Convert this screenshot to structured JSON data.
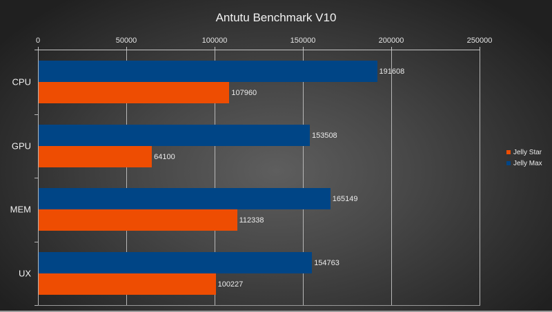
{
  "chart_data": {
    "type": "bar",
    "orientation": "horizontal",
    "title": "Antutu Benchmark V10",
    "xlabel": "",
    "ylabel": "",
    "categories": [
      "CPU",
      "GPU",
      "MEM",
      "UX"
    ],
    "series": [
      {
        "name": "Jelly Max",
        "color": "#004586",
        "values": [
          191608,
          153508,
          165149,
          154763
        ]
      },
      {
        "name": "Jelly Star",
        "color": "#ee4d02",
        "values": [
          107960,
          64100,
          112338,
          100227
        ]
      }
    ],
    "xlim": [
      0,
      250000
    ],
    "x_ticks": [
      "0",
      "50000",
      "100000",
      "150000",
      "200000",
      "250000"
    ],
    "x_axis_position": "top",
    "grid": true,
    "data_labels": true,
    "legend": {
      "position": "right",
      "entries": [
        "Jelly Star",
        "Jelly Max"
      ]
    }
  },
  "legend": {
    "items": [
      {
        "label": "Jelly Star",
        "color": "#ee4d02"
      },
      {
        "label": "Jelly Max",
        "color": "#004586"
      }
    ]
  }
}
